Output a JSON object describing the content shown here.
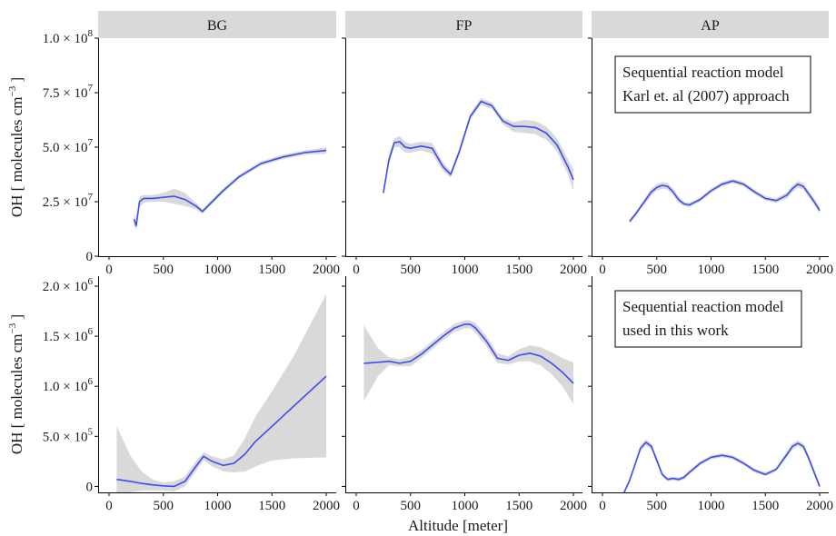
{
  "chart_data": {
    "type": "line",
    "xlabel": "Altitude [meter]",
    "x_ticks": [
      "0",
      "500",
      "1000",
      "1500",
      "2000"
    ],
    "xlim": [
      0,
      2050
    ],
    "colors": {
      "line": "#3b4cf0",
      "ribbon": "#d9d9d9",
      "strip": "#d9d9d9",
      "axis": "#000000"
    },
    "panels": [
      "BG",
      "FP",
      "AP"
    ],
    "rows": [
      {
        "ylabel_main": "OH [ molecules cm",
        "ylabel_exp": "−3",
        "ylabel_end": " ]",
        "ylim": [
          0,
          100000000
        ],
        "y_ticks": [
          {
            "value": 0,
            "label": "0",
            "exp": ""
          },
          {
            "value": 25000000,
            "label": "2.5 × 10",
            "exp": "7"
          },
          {
            "value": 50000000,
            "label": "5.0 × 10",
            "exp": "7"
          },
          {
            "value": 75000000,
            "label": "7.5 × 10",
            "exp": "7"
          },
          {
            "value": 100000000,
            "label": "1.0 × 10",
            "exp": "8"
          }
        ],
        "annotation": [
          "Sequential reaction model",
          "Karl et. al (2007) approach"
        ],
        "series": [
          {
            "panel": "BG",
            "x": [
              230,
              250,
              280,
              320,
              400,
              500,
              600,
              700,
              800,
              860,
              950,
              1050,
              1200,
              1400,
              1600,
              1800,
              2000
            ],
            "y": [
              17000000,
              14000000,
              25000000,
              26500000,
              26500000,
              27000000,
              27500000,
              26000000,
              23000000,
              20500000,
              25000000,
              30000000,
              36500000,
              42500000,
              45500000,
              47500000,
              48500000
            ],
            "lower": [
              14000000,
              12000000,
              22500000,
              24500000,
              25000000,
              25000000,
              24000000,
              23000000,
              21500000,
              19500000,
              24000000,
              29000000,
              35500000,
              41500000,
              44500000,
              46500000,
              47000000
            ],
            "upper": [
              20000000,
              16000000,
              27500000,
              28000000,
              28000000,
              29000000,
              31000000,
              29000000,
              24500000,
              21500000,
              26000000,
              31000000,
              37500000,
              43500000,
              46500000,
              48500000,
              50000000
            ]
          },
          {
            "panel": "FP",
            "x": [
              250,
              300,
              350,
              400,
              450,
              500,
              600,
              700,
              800,
              870,
              950,
              1050,
              1150,
              1250,
              1350,
              1450,
              1550,
              1650,
              1750,
              1850,
              1950,
              2000
            ],
            "y": [
              29000000,
              44000000,
              52000000,
              52500000,
              50000000,
              49500000,
              50500000,
              49500000,
              41000000,
              37500000,
              48000000,
              64000000,
              71000000,
              69000000,
              62000000,
              59500000,
              59500000,
              59000000,
              56500000,
              51000000,
              41000000,
              35000000
            ],
            "lower": [
              28000000,
              42000000,
              50000000,
              50000000,
              47500000,
              47500000,
              48500000,
              47000000,
              39000000,
              36000000,
              46500000,
              62500000,
              69500000,
              67500000,
              60500000,
              57000000,
              56500000,
              56000000,
              53500000,
              48000000,
              37500000,
              30000000
            ],
            "upper": [
              30000000,
              46000000,
              54000000,
              55000000,
              52500000,
              51500000,
              52500000,
              52000000,
              43000000,
              39000000,
              49500000,
              65500000,
              72500000,
              70500000,
              63500000,
              61500000,
              62500000,
              62000000,
              59500000,
              54000000,
              44500000,
              40000000
            ]
          },
          {
            "panel": "AP",
            "x": [
              250,
              300,
              350,
              400,
              450,
              500,
              550,
              600,
              650,
              700,
              750,
              800,
              900,
              1000,
              1100,
              1200,
              1300,
              1400,
              1500,
              1600,
              1700,
              1750,
              1800,
              1850,
              1900,
              1950,
              2000
            ],
            "y": [
              16000000,
              19000000,
              22500000,
              26000000,
              29500000,
              31500000,
              32500000,
              32000000,
              29500000,
              26000000,
              24000000,
              23500000,
              26000000,
              30000000,
              33000000,
              34500000,
              33000000,
              29500000,
              26500000,
              25500000,
              28000000,
              31000000,
              33000000,
              32000000,
              28500000,
              25000000,
              21000000
            ],
            "lower": [
              15000000,
              18000000,
              21500000,
              24500000,
              28000000,
              30000000,
              31000000,
              30500000,
              28000000,
              24500000,
              23000000,
              22500000,
              25000000,
              29000000,
              32000000,
              33500000,
              32000000,
              28500000,
              25500000,
              24500000,
              26500000,
              29500000,
              31500000,
              30500000,
              27000000,
              23500000,
              19500000
            ],
            "upper": [
              17000000,
              20000000,
              23500000,
              27500000,
              31000000,
              33000000,
              34000000,
              33500000,
              31000000,
              27500000,
              25000000,
              24500000,
              27000000,
              31000000,
              34000000,
              35500000,
              34000000,
              30500000,
              27500000,
              26500000,
              29500000,
              32500000,
              34500000,
              33500000,
              30000000,
              26500000,
              22500000
            ]
          }
        ]
      },
      {
        "ylabel_main": "OH [ molecules cm",
        "ylabel_exp": "−3",
        "ylabel_end": " ]",
        "ylim": [
          -60000,
          2100000
        ],
        "y_ticks": [
          {
            "value": 0,
            "label": "0",
            "exp": ""
          },
          {
            "value": 500000,
            "label": "5.0 × 10",
            "exp": "5"
          },
          {
            "value": 1000000,
            "label": "1.0 × 10",
            "exp": "6"
          },
          {
            "value": 1500000,
            "label": "1.5 × 10",
            "exp": "6"
          },
          {
            "value": 2000000,
            "label": "2.0 × 10",
            "exp": "6"
          }
        ],
        "annotation": [
          "Sequential reaction model",
          "used in this work"
        ],
        "series": [
          {
            "panel": "BG",
            "x": [
              70,
              200,
              300,
              400,
              500,
              600,
              700,
              800,
              870,
              950,
              1050,
              1150,
              1250,
              1350,
              1500,
              1700,
              2000
            ],
            "y": [
              70000,
              50000,
              30000,
              15000,
              5000,
              0,
              50000,
              200000,
              300000,
              250000,
              210000,
              230000,
              320000,
              450000,
              600000,
              800000,
              1100000
            ],
            "lower": [
              -60000,
              -60000,
              -40000,
              -40000,
              -40000,
              -50000,
              0,
              150000,
              260000,
              200000,
              150000,
              140000,
              150000,
              200000,
              260000,
              280000,
              290000
            ],
            "upper": [
              600000,
              300000,
              150000,
              70000,
              40000,
              50000,
              100000,
              250000,
              340000,
              300000,
              270000,
              310000,
              480000,
              700000,
              950000,
              1300000,
              1920000
            ]
          },
          {
            "panel": "FP",
            "x": [
              70,
              200,
              300,
              400,
              500,
              600,
              700,
              800,
              900,
              1000,
              1050,
              1100,
              1200,
              1300,
              1400,
              1500,
              1600,
              1700,
              1800,
              1900,
              2000
            ],
            "y": [
              1230000,
              1240000,
              1250000,
              1230000,
              1250000,
              1320000,
              1410000,
              1500000,
              1580000,
              1620000,
              1620000,
              1580000,
              1450000,
              1280000,
              1260000,
              1310000,
              1330000,
              1300000,
              1230000,
              1140000,
              1030000
            ],
            "lower": [
              850000,
              1100000,
              1210000,
              1200000,
              1200000,
              1280000,
              1370000,
              1460000,
              1540000,
              1580000,
              1580000,
              1530000,
              1400000,
              1230000,
              1220000,
              1250000,
              1250000,
              1210000,
              1120000,
              1000000,
              820000
            ],
            "upper": [
              1610000,
              1380000,
              1290000,
              1270000,
              1300000,
              1360000,
              1450000,
              1540000,
              1620000,
              1660000,
              1660000,
              1630000,
              1500000,
              1330000,
              1300000,
              1370000,
              1410000,
              1390000,
              1340000,
              1280000,
              1240000
            ]
          },
          {
            "panel": "AP",
            "x": [
              200,
              250,
              300,
              350,
              400,
              450,
              500,
              550,
              600,
              650,
              700,
              750,
              800,
              900,
              1000,
              1100,
              1200,
              1300,
              1400,
              1500,
              1600,
              1700,
              1750,
              1800,
              1850,
              1900,
              1950,
              2000
            ],
            "y": [
              -60000,
              60000,
              220000,
              380000,
              440000,
              400000,
              260000,
              120000,
              70000,
              80000,
              70000,
              90000,
              140000,
              230000,
              290000,
              310000,
              290000,
              230000,
              160000,
              120000,
              170000,
              320000,
              400000,
              430000,
              400000,
              280000,
              140000,
              0
            ],
            "lower": [
              -60000,
              40000,
              200000,
              350000,
              410000,
              370000,
              230000,
              100000,
              50000,
              60000,
              50000,
              70000,
              120000,
              210000,
              270000,
              290000,
              270000,
              210000,
              140000,
              100000,
              150000,
              290000,
              370000,
              400000,
              370000,
              250000,
              110000,
              -30000
            ],
            "upper": [
              -40000,
              80000,
              240000,
              410000,
              470000,
              430000,
              290000,
              140000,
              90000,
              100000,
              90000,
              110000,
              160000,
              250000,
              310000,
              330000,
              310000,
              250000,
              180000,
              140000,
              190000,
              350000,
              430000,
              460000,
              430000,
              310000,
              170000,
              30000
            ]
          }
        ]
      }
    ]
  }
}
